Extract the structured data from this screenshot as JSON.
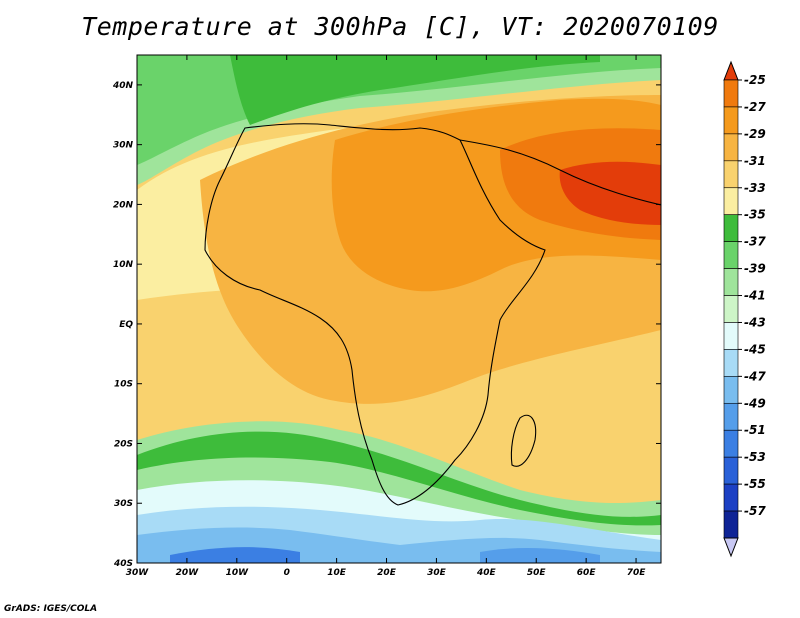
{
  "title": "Temperature at 300hPa [C], VT: 2020070109",
  "credit": "GrADS: IGES/COLA",
  "map": {
    "lon_range": [
      -30,
      75
    ],
    "lat_range": [
      -40,
      45
    ],
    "lon_ticks": [
      "30W",
      "20W",
      "10W",
      "0",
      "10E",
      "20E",
      "30E",
      "40E",
      "50E",
      "60E",
      "70E"
    ],
    "lat_ticks": [
      "40S",
      "30S",
      "20S",
      "10S",
      "EQ",
      "10N",
      "20N",
      "30N",
      "40N"
    ]
  },
  "colorbar": {
    "colors": [
      "#e33d0a",
      "#f07a0e",
      "#f59a1d",
      "#f7b442",
      "#f9d26e",
      "#fbeea1",
      "#3ebc3b",
      "#6ad36a",
      "#9fe49b",
      "#cdf5c7",
      "#e3fbfb",
      "#a8dbf6",
      "#79bdef",
      "#559eea",
      "#3b7fe3",
      "#2a61d8",
      "#1c40c4",
      "#0f2496",
      "#c8c8f3"
    ],
    "labels": [
      "-25",
      "-27",
      "-29",
      "-31",
      "-33",
      "-35",
      "-37",
      "-39",
      "-41",
      "-43",
      "-45",
      "-47",
      "-49",
      "-51",
      "-53",
      "-55",
      "-57"
    ]
  }
}
